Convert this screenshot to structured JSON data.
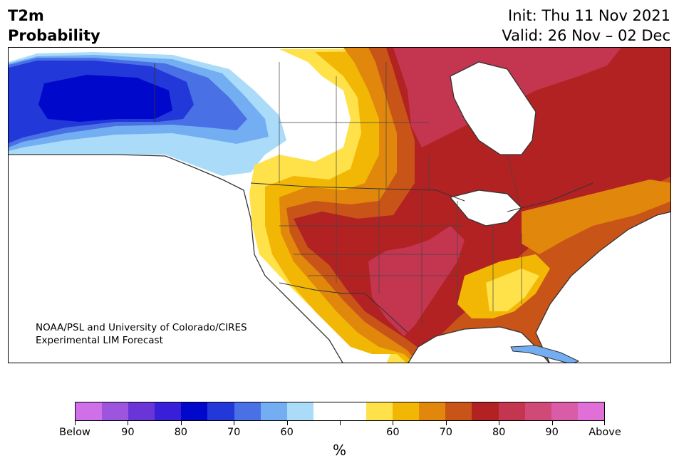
{
  "header": {
    "variable": "T2m",
    "subtitle": "Probability",
    "init": "Init: Thu 11 Nov 2021",
    "valid": "Valid: 26 Nov – 02 Dec"
  },
  "map": {
    "credit_line1": "NOAA/PSL and University of Colorado/CIRES",
    "credit_line2": "Experimental LIM Forecast",
    "region": "North America"
  },
  "colorbar": {
    "colors": [
      "#d070e8",
      "#9d55e0",
      "#6a35d8",
      "#3a1fd8",
      "#0008cc",
      "#2238d8",
      "#4a70e6",
      "#74aef2",
      "#aadcfa",
      "#ffffff",
      "#ffffff",
      "#ffe14a",
      "#f2b705",
      "#e0870c",
      "#c85418",
      "#b22222",
      "#c43550",
      "#d04a78",
      "#da5ca8",
      "#e070d8"
    ],
    "labels": [
      "Below",
      "90",
      "80",
      "70",
      "60",
      "60",
      "70",
      "80",
      "90",
      "Above"
    ],
    "unit": "%"
  }
}
